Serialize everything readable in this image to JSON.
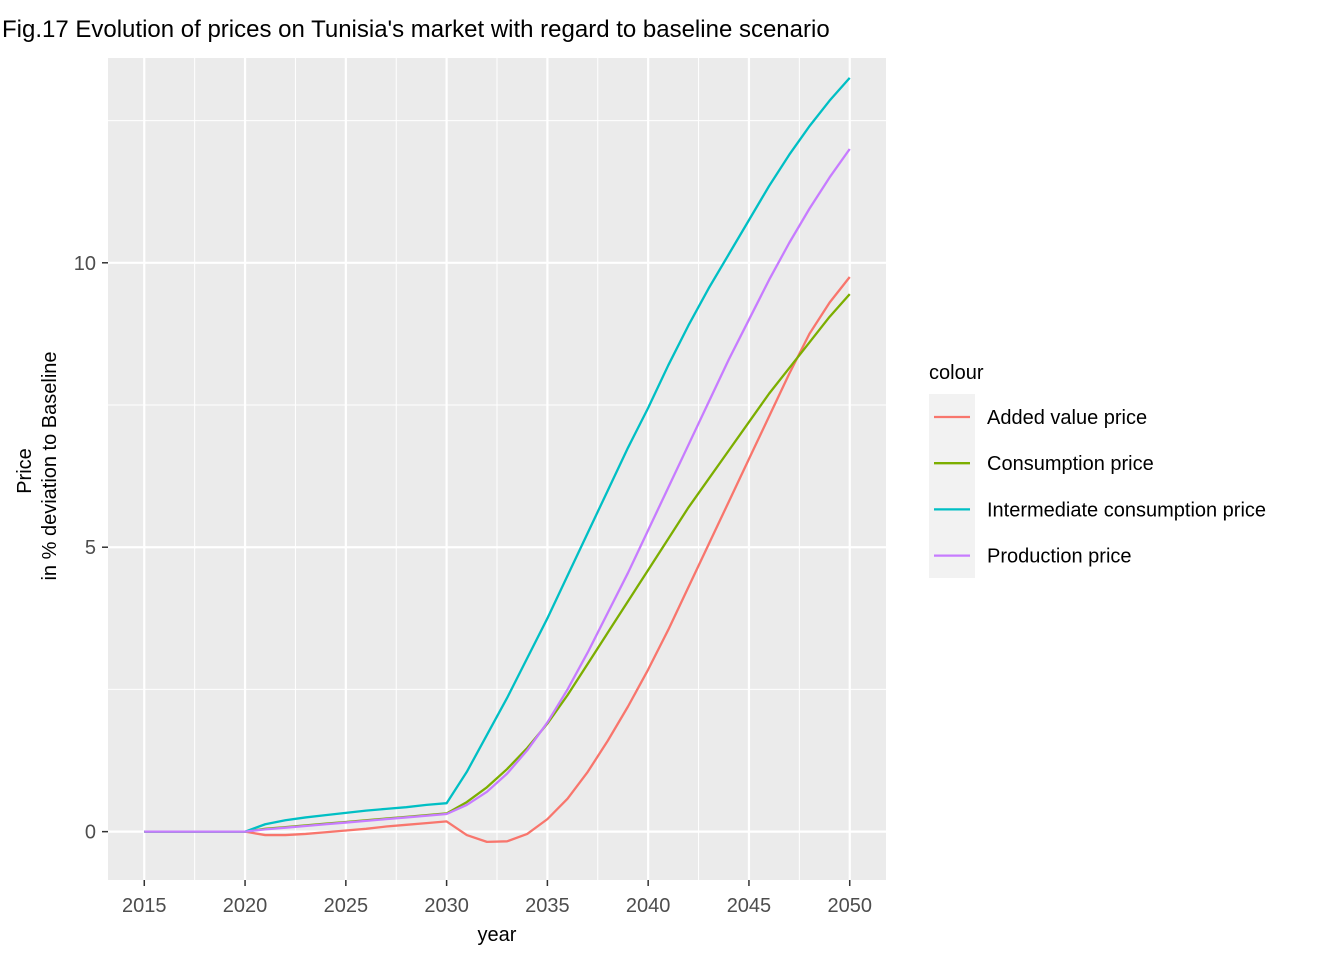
{
  "chart_data": {
    "type": "line",
    "title": "Fig.17 Evolution of prices on Tunisia's market with regard to baseline scenario",
    "xlabel": "year",
    "ylabel_lines": [
      "Price",
      "in % deviation to Baseline"
    ],
    "xlim": [
      2013.2,
      2051.8
    ],
    "ylim": [
      -0.85,
      13.6
    ],
    "x_ticks": [
      2015,
      2020,
      2025,
      2030,
      2035,
      2040,
      2045,
      2050
    ],
    "y_ticks": [
      0,
      5,
      10
    ],
    "grid": true,
    "legend_title": "colour",
    "legend_position": "right",
    "x": [
      2015,
      2016,
      2017,
      2018,
      2019,
      2020,
      2021,
      2022,
      2023,
      2024,
      2025,
      2026,
      2027,
      2028,
      2029,
      2030,
      2031,
      2032,
      2033,
      2034,
      2035,
      2036,
      2037,
      2038,
      2039,
      2040,
      2041,
      2042,
      2043,
      2044,
      2045,
      2046,
      2047,
      2048,
      2049,
      2050
    ],
    "series": [
      {
        "name": "Added value price",
        "color": "#F8766D",
        "values": [
          0,
          0,
          0,
          0,
          0,
          0,
          -0.06,
          -0.06,
          -0.04,
          -0.01,
          0.02,
          0.05,
          0.09,
          0.12,
          0.15,
          0.18,
          -0.06,
          -0.18,
          -0.17,
          -0.04,
          0.22,
          0.58,
          1.05,
          1.6,
          2.2,
          2.85,
          3.55,
          4.3,
          5.05,
          5.8,
          6.55,
          7.3,
          8.05,
          8.75,
          9.3,
          9.75
        ]
      },
      {
        "name": "Consumption price",
        "color": "#7CAE00",
        "values": [
          0,
          0,
          0,
          0,
          0,
          0,
          0.05,
          0.08,
          0.11,
          0.14,
          0.17,
          0.2,
          0.23,
          0.26,
          0.29,
          0.32,
          0.52,
          0.78,
          1.1,
          1.47,
          1.9,
          2.4,
          2.95,
          3.5,
          4.05,
          4.6,
          5.15,
          5.7,
          6.2,
          6.7,
          7.2,
          7.7,
          8.15,
          8.6,
          9.05,
          9.45
        ]
      },
      {
        "name": "Intermediate consumption price",
        "color": "#00BFC4",
        "values": [
          0,
          0,
          0,
          0,
          0,
          0,
          0.13,
          0.2,
          0.25,
          0.29,
          0.33,
          0.37,
          0.4,
          0.43,
          0.47,
          0.5,
          1.05,
          1.7,
          2.35,
          3.05,
          3.75,
          4.5,
          5.25,
          6.0,
          6.75,
          7.45,
          8.2,
          8.9,
          9.55,
          10.15,
          10.75,
          11.35,
          11.9,
          12.4,
          12.85,
          13.25
        ]
      },
      {
        "name": "Production price",
        "color": "#C77CFF",
        "values": [
          0,
          0,
          0,
          0,
          0,
          0,
          0.04,
          0.07,
          0.1,
          0.13,
          0.16,
          0.19,
          0.22,
          0.25,
          0.28,
          0.31,
          0.47,
          0.7,
          1.02,
          1.43,
          1.92,
          2.5,
          3.15,
          3.85,
          4.55,
          5.3,
          6.05,
          6.8,
          7.55,
          8.3,
          9.0,
          9.7,
          10.35,
          10.95,
          11.5,
          12.0
        ]
      }
    ]
  }
}
